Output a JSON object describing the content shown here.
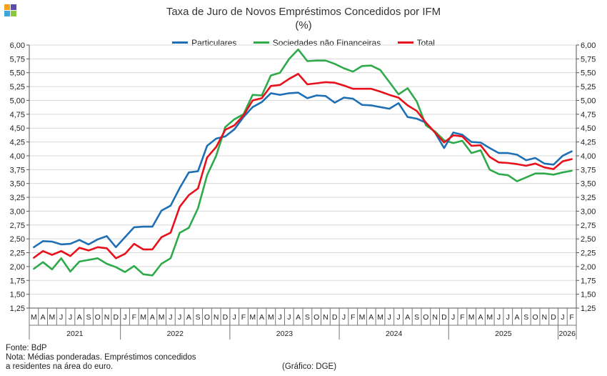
{
  "title": "Taxa de Juro de Novos Empréstimos  Concedidos por IFM",
  "subtitle": "(%)",
  "colors": {
    "particulares": "#1f6fb5",
    "snf": "#2eaa4a",
    "total": "#e8101a",
    "logo": [
      "#f7a21b",
      "#5a4ea8",
      "#3aa7d8",
      "#8dc63f"
    ]
  },
  "footer": {
    "source": "Fonte: BdP",
    "note_line1": "Nota: Médias ponderadas. Empréstimos concedidos",
    "note_line2": "a residentes na área do euro.",
    "credit": "(Gráfico: DGE)"
  },
  "chart_data": {
    "type": "line",
    "title": "Taxa de Juro de Novos Empréstimos  Concedidos por IFM",
    "subtitle": "(%)",
    "ylim": [
      1.25,
      6.0
    ],
    "yticks": [
      "6,00",
      "5,75",
      "5,50",
      "5,25",
      "5,00",
      "4,75",
      "4,50",
      "4,25",
      "4,00",
      "3,75",
      "3,50",
      "3,25",
      "3,00",
      "2,75",
      "2,50",
      "2,25",
      "2,00",
      "1,75",
      "1,50",
      "1,25"
    ],
    "grid": true,
    "legend_position": "top-center",
    "months": [
      "M",
      "A",
      "M",
      "J",
      "J",
      "A",
      "S",
      "O",
      "N",
      "D",
      "J",
      "F",
      "M",
      "A",
      "M",
      "J",
      "J",
      "A",
      "S",
      "O",
      "N",
      "D",
      "J",
      "F",
      "M",
      "A",
      "M",
      "J",
      "J",
      "A",
      "S",
      "O",
      "N",
      "D",
      "J",
      "F",
      "M",
      "A",
      "M",
      "J",
      "J",
      "A",
      "S",
      "O",
      "N",
      "D",
      "J",
      "F",
      "M",
      "A",
      "M",
      "J",
      "J",
      "A",
      "S",
      "O",
      "N",
      "D",
      "J",
      "F"
    ],
    "years": [
      {
        "label": "2021",
        "count": 10
      },
      {
        "label": "2022",
        "count": 12
      },
      {
        "label": "2023",
        "count": 12
      },
      {
        "label": "2024",
        "count": 12
      },
      {
        "label": "2025",
        "count": 12
      },
      {
        "label": "2026",
        "count": 2
      }
    ],
    "series": [
      {
        "name": "Particulares",
        "key": "particulares",
        "values": [
          2.35,
          2.46,
          2.45,
          2.4,
          2.41,
          2.48,
          2.4,
          2.49,
          2.55,
          2.35,
          2.53,
          2.71,
          2.72,
          2.72,
          3.01,
          3.1,
          3.42,
          3.7,
          3.72,
          4.18,
          4.31,
          4.35,
          4.48,
          4.7,
          4.88,
          4.97,
          5.13,
          5.1,
          5.13,
          5.14,
          5.04,
          5.09,
          5.08,
          4.96,
          5.05,
          5.03,
          4.92,
          4.91,
          4.88,
          4.85,
          4.95,
          4.7,
          4.67,
          4.6,
          4.42,
          4.14,
          4.42,
          4.38,
          4.25,
          4.24,
          4.14,
          4.05,
          4.05,
          4.02,
          3.92,
          3.96,
          3.86,
          3.84,
          4.0,
          4.08
        ]
      },
      {
        "name": "Sociedades não Financeiras",
        "key": "snf",
        "values": [
          1.96,
          2.08,
          1.95,
          2.15,
          1.91,
          2.09,
          2.12,
          2.15,
          2.05,
          1.99,
          1.9,
          2.01,
          1.86,
          1.84,
          2.05,
          2.15,
          2.61,
          2.7,
          3.05,
          3.65,
          4.0,
          4.52,
          4.66,
          4.75,
          5.1,
          5.09,
          5.45,
          5.5,
          5.75,
          5.92,
          5.71,
          5.72,
          5.72,
          5.66,
          5.58,
          5.52,
          5.62,
          5.63,
          5.55,
          5.33,
          5.11,
          5.22,
          4.98,
          4.55,
          4.44,
          4.28,
          4.23,
          4.27,
          4.05,
          4.1,
          3.75,
          3.67,
          3.65,
          3.54,
          3.61,
          3.68,
          3.68,
          3.66,
          3.7,
          3.73
        ]
      },
      {
        "name": "Total",
        "key": "total",
        "values": [
          2.16,
          2.28,
          2.21,
          2.28,
          2.19,
          2.34,
          2.29,
          2.35,
          2.33,
          2.15,
          2.23,
          2.41,
          2.31,
          2.31,
          2.53,
          2.61,
          3.08,
          3.29,
          3.41,
          3.97,
          4.16,
          4.47,
          4.55,
          4.73,
          5.0,
          5.04,
          5.26,
          5.28,
          5.39,
          5.48,
          5.29,
          5.31,
          5.33,
          5.32,
          5.27,
          5.21,
          5.21,
          5.21,
          5.16,
          5.1,
          5.05,
          4.91,
          4.81,
          4.6,
          4.42,
          4.24,
          4.37,
          4.35,
          4.18,
          4.19,
          3.98,
          3.88,
          3.87,
          3.85,
          3.82,
          3.86,
          3.79,
          3.76,
          3.9,
          3.94
        ]
      }
    ]
  }
}
